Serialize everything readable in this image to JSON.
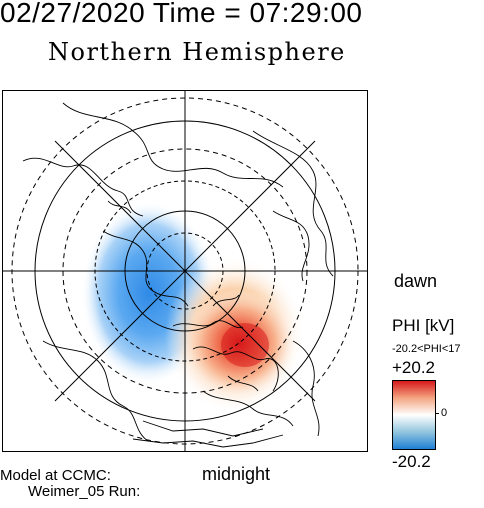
{
  "header": {
    "datetime": "02/27/2020 Time = 07:29:00"
  },
  "title": "Northern Hemisphere",
  "orientation": {
    "dawn": "dawn",
    "midnight": "midnight"
  },
  "model": {
    "line1": "Model at CCMC:",
    "line2": "Weimer_05 Run:"
  },
  "colorbar": {
    "quantity": "PHI",
    "unit": "[kV]",
    "range_text": "-20.2<PHI<17",
    "max_label": "+20.2",
    "zero_label": "0",
    "min_label": "-20.2",
    "colors": {
      "positive": "#d7191c",
      "mid_positive": "#f4a582",
      "zero": "#ffffff",
      "mid_negative": "#92c5de",
      "negative": "#1e7fd6"
    }
  },
  "map_style": {
    "grid": "#000000",
    "land_outline": "#000000"
  }
}
